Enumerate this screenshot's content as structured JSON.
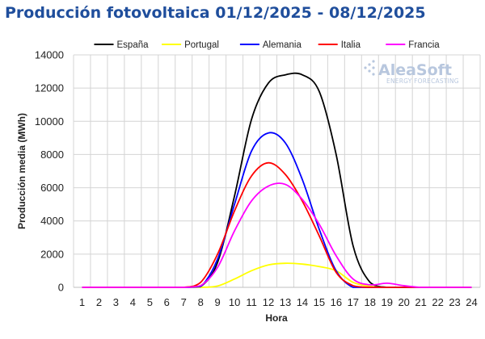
{
  "chart_data": {
    "type": "line",
    "title": "Producción fotovoltaica 01/12/2025 - 08/12/2025",
    "xlabel": "Hora",
    "ylabel": "Producción media (MWh)",
    "ylim": [
      0,
      14000
    ],
    "yticks": [
      0,
      2000,
      4000,
      6000,
      8000,
      10000,
      12000,
      14000
    ],
    "x": [
      1,
      2,
      3,
      4,
      5,
      6,
      7,
      8,
      9,
      10,
      11,
      12,
      13,
      14,
      15,
      16,
      17,
      18,
      19,
      20,
      21,
      22,
      23,
      24
    ],
    "grid": true,
    "legend_position": "top",
    "watermark": {
      "name": "AleaSoft",
      "tagline": "ENERGY FORECASTING"
    },
    "series": [
      {
        "name": "España",
        "color": "#000000",
        "values": [
          0,
          0,
          0,
          0,
          0,
          0,
          0,
          50,
          1500,
          5500,
          10100,
          12300,
          12800,
          12800,
          11800,
          8000,
          2500,
          300,
          0,
          0,
          0,
          0,
          0,
          0
        ]
      },
      {
        "name": "Portugal",
        "color": "#ffff00",
        "values": [
          0,
          0,
          0,
          0,
          0,
          0,
          0,
          0,
          80,
          500,
          1000,
          1350,
          1450,
          1400,
          1250,
          1000,
          300,
          60,
          0,
          0,
          0,
          0,
          0,
          0
        ]
      },
      {
        "name": "Alemania",
        "color": "#0000ff",
        "values": [
          0,
          0,
          0,
          0,
          0,
          0,
          0,
          50,
          1700,
          5000,
          8200,
          9300,
          8700,
          6500,
          3500,
          1000,
          0,
          0,
          0,
          0,
          0,
          0,
          0,
          0
        ]
      },
      {
        "name": "Italia",
        "color": "#ff0000",
        "values": [
          0,
          0,
          0,
          0,
          0,
          0,
          0,
          300,
          2000,
          4600,
          6700,
          7500,
          6800,
          5200,
          3100,
          900,
          100,
          0,
          0,
          0,
          0,
          0,
          0,
          0
        ]
      },
      {
        "name": "Francia",
        "color": "#ff00ff",
        "values": [
          0,
          0,
          0,
          0,
          0,
          0,
          0,
          100,
          1200,
          3400,
          5200,
          6100,
          6200,
          5300,
          3800,
          1900,
          500,
          150,
          250,
          100,
          0,
          0,
          0,
          0
        ]
      }
    ]
  }
}
